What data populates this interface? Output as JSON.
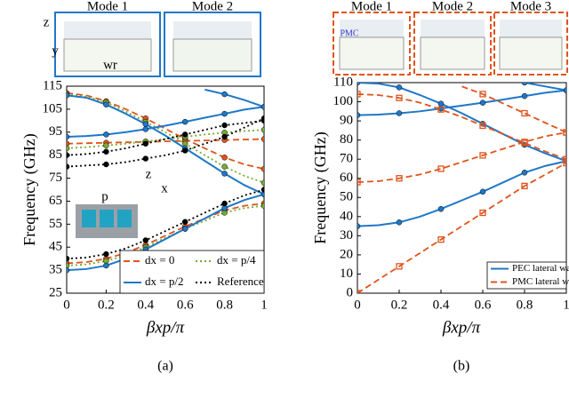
{
  "chart_data": [
    {
      "type": "line",
      "xlabel": "βxp/π",
      "ylabel": "Frequency (GHz)",
      "caption": "(a)",
      "x": [
        0,
        0.1,
        0.2,
        0.3,
        0.4,
        0.5,
        0.6,
        0.7,
        0.8,
        0.9,
        1
      ],
      "xlim": [
        0,
        1
      ],
      "xticks": [
        0,
        0.2,
        0.4,
        0.6,
        0.8,
        1
      ],
      "ylim": [
        25,
        115
      ],
      "yticks": [
        25,
        35,
        45,
        55,
        65,
        75,
        85,
        95,
        105,
        115
      ],
      "legend": "lower right",
      "annotations": [
        "Mode 1",
        "Mode 2",
        "z",
        "y",
        "wr",
        "z",
        "x",
        "p"
      ],
      "series": [
        {
          "name": "dx = 0",
          "color": "#e0541c",
          "dash": "dashed",
          "marker": "circle",
          "values": [
            [
              38,
              38.5,
              40,
              42.5,
              46,
              50,
              54,
              57.5,
              61,
              63,
              64
            ],
            [
              112,
              111,
              108.5,
              105,
              101,
              96.5,
              92,
              88,
              84,
              81,
              79
            ],
            [
              90,
              90.2,
              90.4,
              90.6,
              90.8,
              91,
              91.2,
              91.4,
              91.6,
              91.8,
              92
            ]
          ]
        },
        {
          "name": "dx = p/4",
          "color": "#77ac30",
          "dash": "dotted",
          "marker": "circle",
          "values": [
            [
              37,
              37.5,
              39,
              41.5,
              45,
              49,
              53,
              56.5,
              60,
              62,
              63
            ],
            [
              111.5,
              110.5,
              108,
              104,
              99.5,
              95,
              90,
              85,
              80,
              76,
              73
            ],
            [
              88,
              88.5,
              89.2,
              90,
              91,
              92,
              93,
              94,
              94.8,
              95.5,
              96
            ]
          ]
        },
        {
          "name": "dx = p/2",
          "color": "#1f78c8",
          "dash": "solid",
          "marker": "circle",
          "values": [
            [
              35,
              35.5,
              37,
              40,
              44,
              48.5,
              53,
              57.5,
              62,
              65.5,
              68
            ],
            [
              111,
              110,
              107,
              103,
              98.5,
              93.5,
              88,
              82.5,
              77,
              72,
              68
            ],
            [
              93,
              93.3,
              94,
              95,
              96.3,
              97.8,
              99.5,
              101.3,
              103,
              104.8,
              106
            ],
            [
              null,
              null,
              null,
              null,
              null,
              null,
              null,
              113.5,
              111.5,
              109,
              106
            ]
          ]
        },
        {
          "name": "Reference",
          "color": "#000000",
          "dash": "dotted",
          "marker": "circle",
          "values": [
            [
              40,
              40.5,
              42,
              44.5,
              48,
              52,
              56,
              60,
              64,
              67.5,
              70
            ],
            [
              80,
              80.5,
              81,
              82,
              83.5,
              85,
              87,
              90,
              93,
              97,
              101
            ],
            [
              85,
              85.5,
              86.5,
              88,
              90,
              92,
              94,
              96,
              98,
              99,
              100
            ]
          ]
        }
      ]
    },
    {
      "type": "line",
      "xlabel": "βxp/π",
      "ylabel": "Frequency (GHz)",
      "caption": "(b)",
      "x": [
        0,
        0.1,
        0.2,
        0.3,
        0.4,
        0.5,
        0.6,
        0.7,
        0.8,
        0.9,
        1
      ],
      "xlim": [
        0,
        1
      ],
      "xticks": [
        0,
        0.2,
        0.4,
        0.6,
        0.8,
        1
      ],
      "ylim": [
        0,
        110
      ],
      "yticks": [
        0,
        10,
        20,
        30,
        40,
        50,
        60,
        70,
        80,
        90,
        100,
        110
      ],
      "legend": "lower right",
      "annotations": [
        "Mode 1",
        "Mode 2",
        "Mode 3",
        "PMC"
      ],
      "series": [
        {
          "name": "PEC lateral walls",
          "color": "#1f78c8",
          "dash": "solid",
          "marker": "circle",
          "values": [
            [
              35,
              35.5,
              37,
              40,
              44,
              48.5,
              53,
              58,
              63,
              66.5,
              69
            ],
            [
              93,
              93.3,
              94,
              95,
              96.5,
              98,
              99.5,
              101.2,
              103,
              104.7,
              106
            ],
            [
              110,
              109.5,
              107.5,
              103.5,
              99,
              94,
              88.5,
              83,
              77.5,
              73,
              69
            ],
            [
              null,
              null,
              null,
              null,
              null,
              null,
              null,
              null,
              110,
              108,
              106
            ]
          ]
        },
        {
          "name": "PMC lateral walls",
          "color": "#e0541c",
          "dash": "dashed",
          "marker": "square",
          "values": [
            [
              0,
              7,
              14,
              21,
              28,
              35,
              42,
              49,
              56,
              62,
              68
            ],
            [
              58,
              58.5,
              60,
              62,
              65,
              68.5,
              72,
              75.5,
              79,
              82,
              84
            ],
            [
              104,
              103.5,
              102,
              99.5,
              96,
              92,
              87.5,
              83,
              78.5,
              74,
              70
            ],
            [
              null,
              null,
              null,
              null,
              null,
              108,
              104,
              99,
              94,
              89,
              84
            ]
          ]
        }
      ]
    }
  ]
}
